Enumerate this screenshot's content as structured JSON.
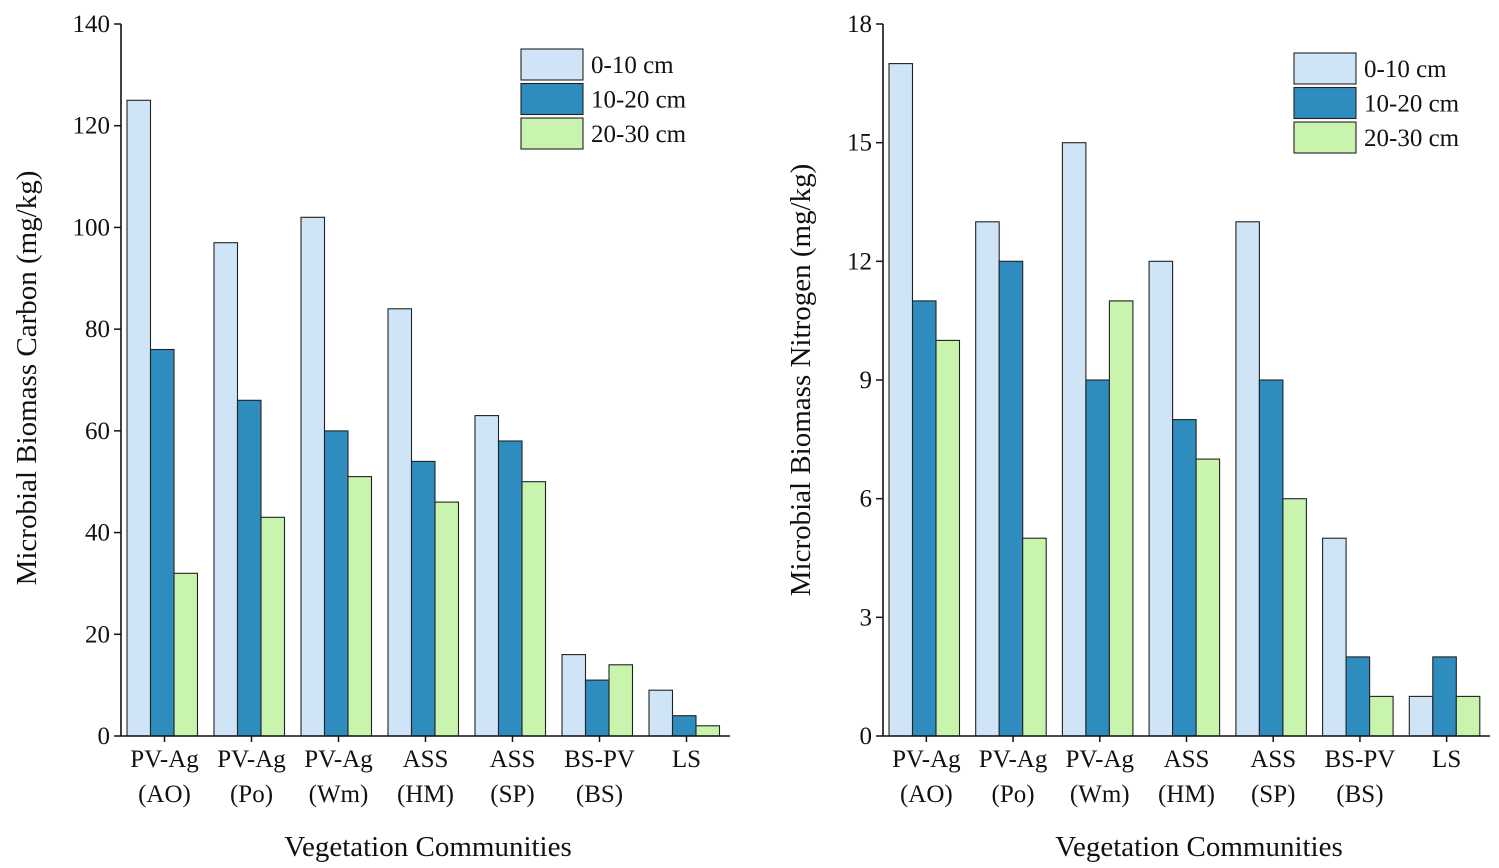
{
  "chart_data": [
    {
      "type": "bar",
      "title": "",
      "xlabel": "Vegetation Communities",
      "ylabel": "Microbial Biomass Carbon (mg/kg)",
      "ylim": [
        0,
        140
      ],
      "yticks": [
        0,
        20,
        40,
        60,
        80,
        100,
        120,
        140
      ],
      "categories": [
        [
          "PV-Ag",
          "(AO)"
        ],
        [
          "PV-Ag",
          "(Po)"
        ],
        [
          "PV-Ag",
          "(Wm)"
        ],
        [
          "ASS",
          "(HM)"
        ],
        [
          "ASS",
          "(SP)"
        ],
        [
          "BS-PV",
          "(BS)"
        ],
        [
          "LS"
        ]
      ],
      "series": [
        {
          "name": "0-10 cm",
          "color": "#cfe5f7",
          "values": [
            125,
            97,
            102,
            84,
            63,
            16,
            9
          ]
        },
        {
          "name": "10-20 cm",
          "color": "#2f8cbf",
          "values": [
            76,
            66,
            60,
            54,
            58,
            11,
            4
          ]
        },
        {
          "name": "20-30 cm",
          "color": "#c8f4ad",
          "values": [
            32,
            43,
            51,
            46,
            50,
            14,
            2
          ]
        }
      ],
      "legend": "top-right",
      "grid": false
    },
    {
      "type": "bar",
      "title": "",
      "xlabel": "Vegetation Communities",
      "ylabel": "Microbial Biomass Nitrogen (mg/kg)",
      "ylim": [
        0,
        18
      ],
      "yticks": [
        0,
        3,
        6,
        9,
        12,
        15,
        18
      ],
      "categories": [
        [
          "PV-Ag",
          "(AO)"
        ],
        [
          "PV-Ag",
          "(Po)"
        ],
        [
          "PV-Ag",
          "(Wm)"
        ],
        [
          "ASS",
          "(HM)"
        ],
        [
          "ASS",
          "(SP)"
        ],
        [
          "BS-PV",
          "(BS)"
        ],
        [
          "LS"
        ]
      ],
      "series": [
        {
          "name": "0-10 cm",
          "color": "#cfe5f7",
          "values": [
            17,
            13,
            15,
            12,
            13,
            5,
            1
          ]
        },
        {
          "name": "10-20 cm",
          "color": "#2f8cbf",
          "values": [
            11,
            12,
            9,
            8,
            9,
            2,
            2
          ]
        },
        {
          "name": "20-30 cm",
          "color": "#c8f4ad",
          "values": [
            10,
            5,
            11,
            7,
            6,
            1,
            1
          ]
        }
      ],
      "legend": "top-right",
      "grid": false
    }
  ]
}
